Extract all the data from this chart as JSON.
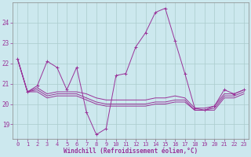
{
  "xlabel": "Windchill (Refroidissement éolien,°C)",
  "background_color": "#cce8ee",
  "grid_color": "#aacccc",
  "line_color": "#993399",
  "text_color": "#993399",
  "x": [
    0,
    1,
    2,
    3,
    4,
    5,
    6,
    7,
    8,
    9,
    10,
    11,
    12,
    13,
    14,
    15,
    16,
    17,
    18,
    19,
    20,
    21,
    22,
    23
  ],
  "series": [
    [
      22.2,
      20.6,
      20.9,
      22.1,
      21.8,
      20.7,
      21.8,
      19.6,
      18.5,
      18.8,
      21.4,
      21.5,
      22.8,
      23.5,
      24.5,
      24.7,
      23.1,
      21.5,
      19.8,
      19.7,
      19.9,
      20.7,
      20.5,
      20.7
    ],
    [
      22.2,
      20.6,
      20.8,
      20.5,
      20.6,
      20.6,
      20.6,
      20.5,
      20.3,
      20.2,
      20.2,
      20.2,
      20.2,
      20.2,
      20.3,
      20.3,
      20.4,
      20.3,
      19.8,
      19.8,
      19.9,
      20.5,
      20.5,
      20.7
    ],
    [
      22.2,
      20.6,
      20.7,
      20.4,
      20.5,
      20.5,
      20.5,
      20.3,
      20.1,
      20.0,
      20.0,
      20.0,
      20.0,
      20.0,
      20.1,
      20.1,
      20.2,
      20.2,
      19.7,
      19.7,
      19.8,
      20.4,
      20.4,
      20.6
    ],
    [
      22.2,
      20.6,
      20.6,
      20.3,
      20.4,
      20.4,
      20.4,
      20.2,
      20.0,
      19.9,
      19.9,
      19.9,
      19.9,
      19.9,
      20.0,
      20.0,
      20.1,
      20.1,
      19.7,
      19.7,
      19.7,
      20.3,
      20.3,
      20.5
    ]
  ],
  "ylim": [
    18.3,
    25.0
  ],
  "yticks": [
    19,
    20,
    21,
    22,
    23,
    24
  ],
  "xticks": [
    0,
    1,
    2,
    3,
    4,
    5,
    6,
    7,
    8,
    9,
    10,
    11,
    12,
    13,
    14,
    15,
    16,
    17,
    18,
    19,
    20,
    21,
    22,
    23
  ],
  "tick_fontsize": 5.0,
  "xlabel_fontsize": 5.5,
  "lw": 0.7,
  "marker_size": 2.0
}
